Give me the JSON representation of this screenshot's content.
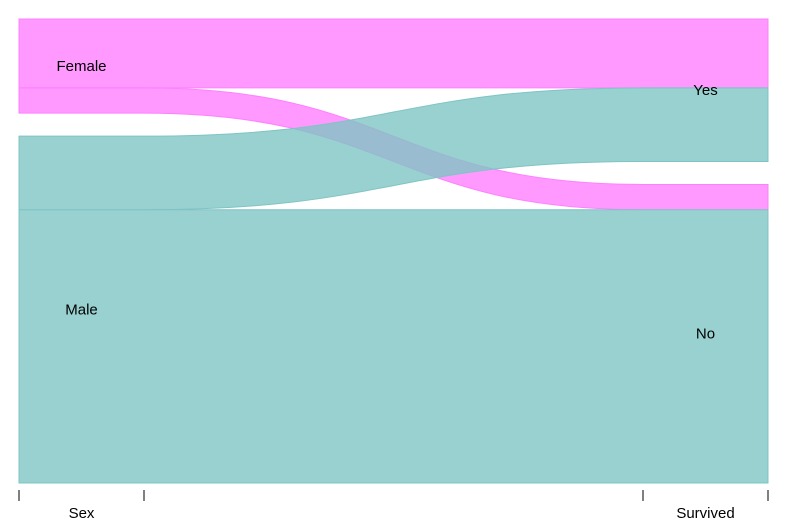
{
  "chart_data": {
    "type": "alluvial",
    "axes": [
      {
        "name": "Sex",
        "categories": [
          "Female",
          "Male"
        ]
      },
      {
        "name": "Survived",
        "categories": [
          "Yes",
          "No"
        ]
      }
    ],
    "flows": [
      {
        "from": "Female",
        "to": "Yes",
        "value": 344,
        "color": "#ff80ff"
      },
      {
        "from": "Female",
        "to": "No",
        "value": 126,
        "color": "#ff80ff"
      },
      {
        "from": "Male",
        "to": "Yes",
        "value": 367,
        "color": "#7fc4c4"
      },
      {
        "from": "Male",
        "to": "No",
        "value": 1364,
        "color": "#7fc4c4"
      }
    ],
    "category_fill": "#ffffff",
    "title": "",
    "xlabel": "",
    "ylabel": ""
  }
}
